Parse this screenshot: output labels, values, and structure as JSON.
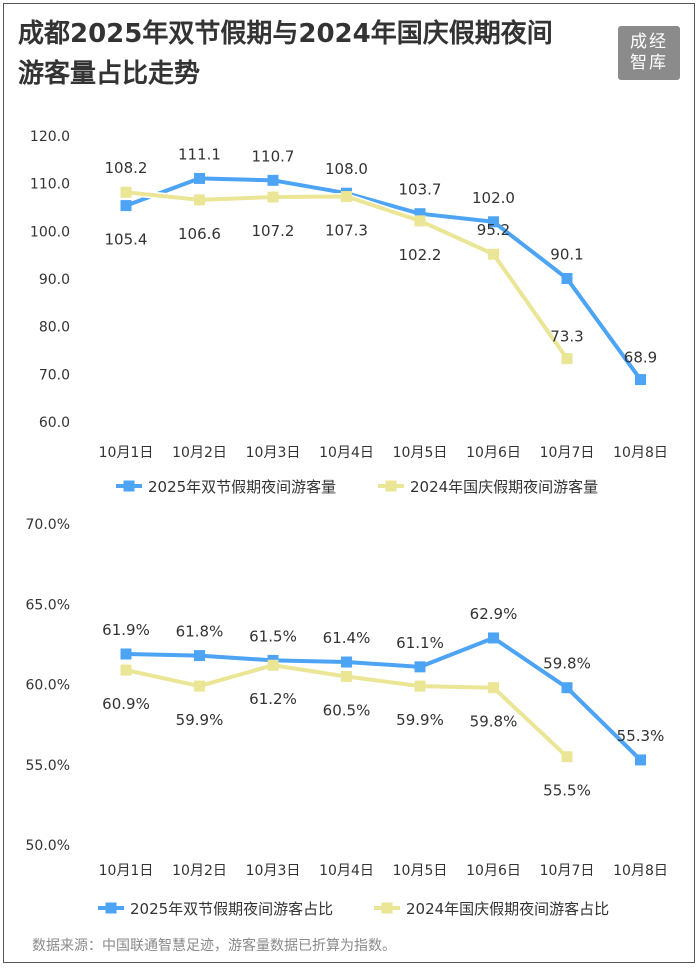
{
  "title": "成都2025年双节假期与2024年国庆假期夜间游客量占比走势",
  "logo": {
    "text": "成经智库"
  },
  "source_note": "数据来源：中国联通智慧足迹，游客量数据已折算为指数。",
  "colors": {
    "series_2025": "#4da3f4",
    "series_2024": "#ebe596",
    "text": "#333333",
    "axis": "#555555"
  },
  "chart_data": [
    {
      "type": "line",
      "title": "",
      "categories": [
        "10月1日",
        "10月2日",
        "10月3日",
        "10月4日",
        "10月5日",
        "10月6日",
        "10月7日",
        "10月8日"
      ],
      "ylim": [
        60,
        120
      ],
      "yticks": [
        60,
        70,
        80,
        90,
        100,
        110,
        120
      ],
      "ytick_labels": [
        "60.0",
        "70.0",
        "80.0",
        "90.0",
        "100.0",
        "110.0",
        "120.0"
      ],
      "grid": false,
      "legend_position": "bottom",
      "series": [
        {
          "name": "2025年双节假期夜间游客量",
          "values": [
            105.4,
            111.1,
            110.7,
            108.0,
            103.7,
            102.0,
            90.1,
            68.9
          ],
          "labels": [
            "105.4",
            "111.1",
            "110.7",
            "108.0",
            "103.7",
            "102.0",
            "90.1",
            "68.9"
          ]
        },
        {
          "name": "2024年国庆假期夜间游客量",
          "values": [
            108.2,
            106.6,
            107.2,
            107.3,
            102.2,
            95.2,
            73.3,
            null
          ],
          "labels": [
            "108.2",
            "106.6",
            "107.2",
            "107.3",
            "102.2",
            "95.2",
            "73.3",
            null
          ]
        }
      ]
    },
    {
      "type": "line",
      "title": "",
      "categories": [
        "10月1日",
        "10月2日",
        "10月3日",
        "10月4日",
        "10月5日",
        "10月6日",
        "10月7日",
        "10月8日"
      ],
      "ylim": [
        50,
        70
      ],
      "yticks": [
        50,
        55,
        60,
        65,
        70
      ],
      "ytick_labels": [
        "50.0%",
        "55.0%",
        "60.0%",
        "65.0%",
        "70.0%"
      ],
      "grid": false,
      "legend_position": "bottom",
      "series": [
        {
          "name": "2025年双节假期夜间游客占比",
          "values": [
            61.9,
            61.8,
            61.5,
            61.4,
            61.1,
            62.9,
            59.8,
            55.3
          ],
          "labels": [
            "61.9%",
            "61.8%",
            "61.5%",
            "61.4%",
            "61.1%",
            "62.9%",
            "59.8%",
            "55.3%"
          ]
        },
        {
          "name": "2024年国庆假期夜间游客占比",
          "values": [
            60.9,
            59.9,
            61.2,
            60.5,
            59.9,
            59.8,
            55.5,
            null
          ],
          "labels": [
            "60.9%",
            "59.9%",
            "61.2%",
            "60.5%",
            "59.9%",
            "59.8%",
            "55.5%",
            null
          ]
        }
      ]
    }
  ]
}
